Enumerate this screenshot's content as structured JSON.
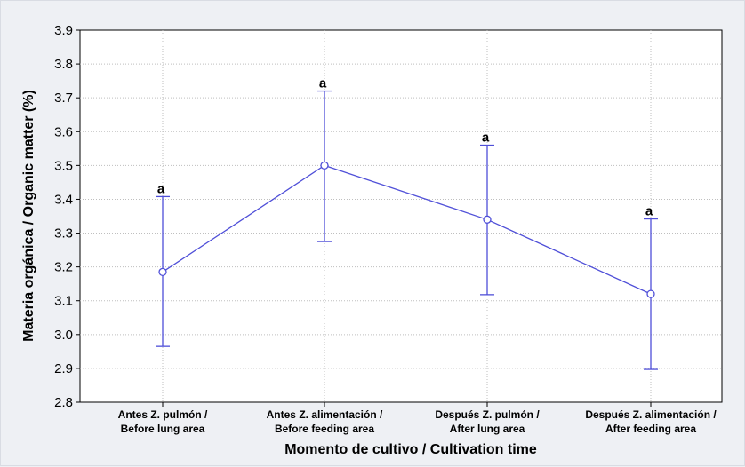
{
  "chart_data": {
    "type": "line",
    "title": "",
    "xlabel": "Momento de cultivo / Cultivation time",
    "ylabel": "Materia orgánica / Organic matter (%)",
    "ylim": [
      2.8,
      3.9
    ],
    "yticks": [
      "2.8",
      "2.9",
      "3.0",
      "3.1",
      "3.2",
      "3.3",
      "3.4",
      "3.5",
      "3.6",
      "3.7",
      "3.8",
      "3.9"
    ],
    "grid": true,
    "categories": [
      [
        "Antes Z. pulmón /",
        "Before lung area"
      ],
      [
        "Antes Z. alimentación /",
        "Before feeding area"
      ],
      [
        "Después Z. pulmón /",
        "After lung area"
      ],
      [
        "Después Z. alimentación /",
        "After feeding area"
      ]
    ],
    "series": [
      {
        "values": [
          3.185,
          3.5,
          3.34,
          3.12
        ],
        "error_low": [
          2.965,
          3.275,
          3.118,
          2.897
        ],
        "error_high": [
          3.408,
          3.72,
          3.56,
          3.342
        ],
        "group_labels": [
          "a",
          "a",
          "a",
          "a"
        ],
        "color": "#4f4fd8"
      }
    ]
  }
}
